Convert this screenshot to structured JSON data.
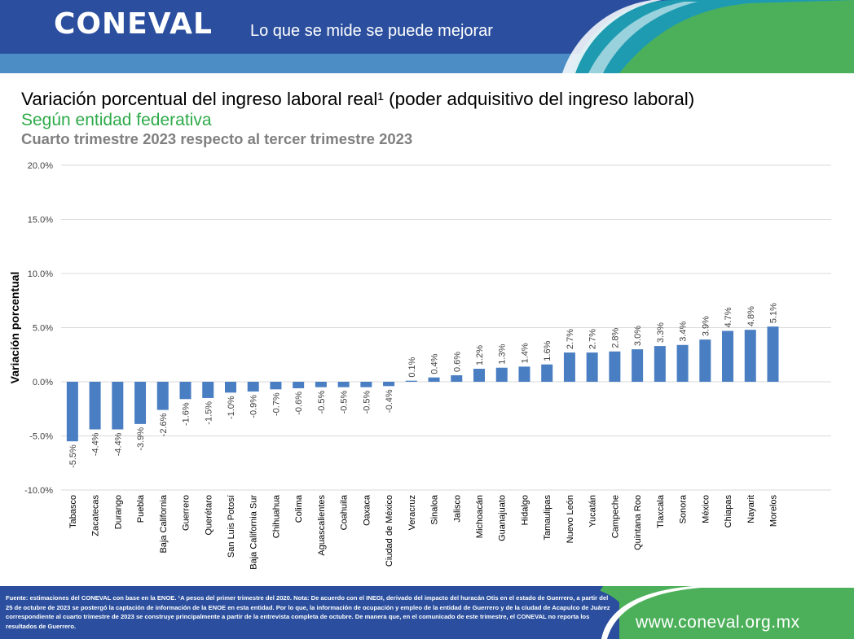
{
  "header": {
    "logo": "CONEVAL",
    "tagline": "Lo que se mide se puede mejorar",
    "colors": {
      "navy": "#2b4f9e",
      "light_blue": "#4b8dc4",
      "teal": "#1e9bb1",
      "green": "#4cb05a"
    }
  },
  "titles": {
    "title": "Variación porcentual del ingreso laboral real¹ (poder adquisitivo del ingreso laboral)",
    "subtitle": "Según entidad federativa",
    "period": "Cuarto trimestre 2023 respecto al tercer trimestre 2023"
  },
  "chart_data": {
    "type": "bar",
    "ylabel": "Variación porcentual",
    "xlabel": "",
    "ylim": [
      -10,
      20
    ],
    "yticks": [
      "-10.0%",
      "-5.0%",
      "0.0%",
      "5.0%",
      "10.0%",
      "15.0%",
      "20.0%"
    ],
    "grid": true,
    "bar_color": "#4a7ec3",
    "categories": [
      "Tabasco",
      "Zacatecas",
      "Durango",
      "Puebla",
      "Baja California",
      "Guerrero",
      "Querétaro",
      "San Luis Potosí",
      "Baja California Sur",
      "Chihuahua",
      "Colima",
      "Aguascalientes",
      "Coahuila",
      "Oaxaca",
      "Ciudad de México",
      "Veracruz",
      "Sinaloa",
      "Jalisco",
      "Michoacán",
      "Guanajuato",
      "Hidalgo",
      "Tamaulipas",
      "Nuevo León",
      "Yucatán",
      "Campeche",
      "Quintana Roo",
      "Tlaxcala",
      "Sonora",
      "México",
      "Chiapas",
      "Nayarit",
      "Morelos"
    ],
    "values": [
      -5.5,
      -4.4,
      -4.4,
      -3.9,
      -2.6,
      -1.6,
      -1.5,
      -1.0,
      -0.9,
      -0.7,
      -0.6,
      -0.5,
      -0.5,
      -0.5,
      -0.4,
      0.1,
      0.4,
      0.6,
      1.2,
      1.3,
      1.4,
      1.6,
      2.7,
      2.7,
      2.8,
      3.0,
      3.3,
      3.4,
      3.9,
      4.7,
      4.8,
      5.1
    ],
    "labels": [
      "-5.5%",
      "-4.4%",
      "-4.4%",
      "-3.9%",
      "-2.6%",
      "-1.6%",
      "-1.5%",
      "-1.0%",
      "-0.9%",
      "-0.7%",
      "-0.6%",
      "-0.5%",
      "-0.5%",
      "-0.5%",
      "-0.4%",
      "0.1%",
      "0.4%",
      "0.6%",
      "1.2%",
      "1.3%",
      "1.4%",
      "1.6%",
      "2.7%",
      "2.7%",
      "2.8%",
      "3.0%",
      "3.3%",
      "3.4%",
      "3.9%",
      "4.7%",
      "4.8%",
      "5.1%"
    ]
  },
  "footer": {
    "note": "Fuente: estimaciones del CONEVAL con base en la ENOE. ¹A pesos del primer trimestre del 2020. Nota: De acuerdo con el INEGI, derivado del impacto del huracán Otis en el estado de Guerrero, a partir del 25 de octubre de 2023 se postergó la captación de información de la ENOE en esta entidad. Por lo que, la información de ocupación y empleo de la entidad de Guerrero y de la ciudad de Acapulco de Juárez correspondiente al cuarto trimestre de 2023 se construye principalmente a partir de la entrevista completa de octubre. De manera que, en el comunicado de este trimestre, el CONEVAL no reporta los resultados de Guerrero.",
    "website": "www.coneval.org.mx"
  }
}
